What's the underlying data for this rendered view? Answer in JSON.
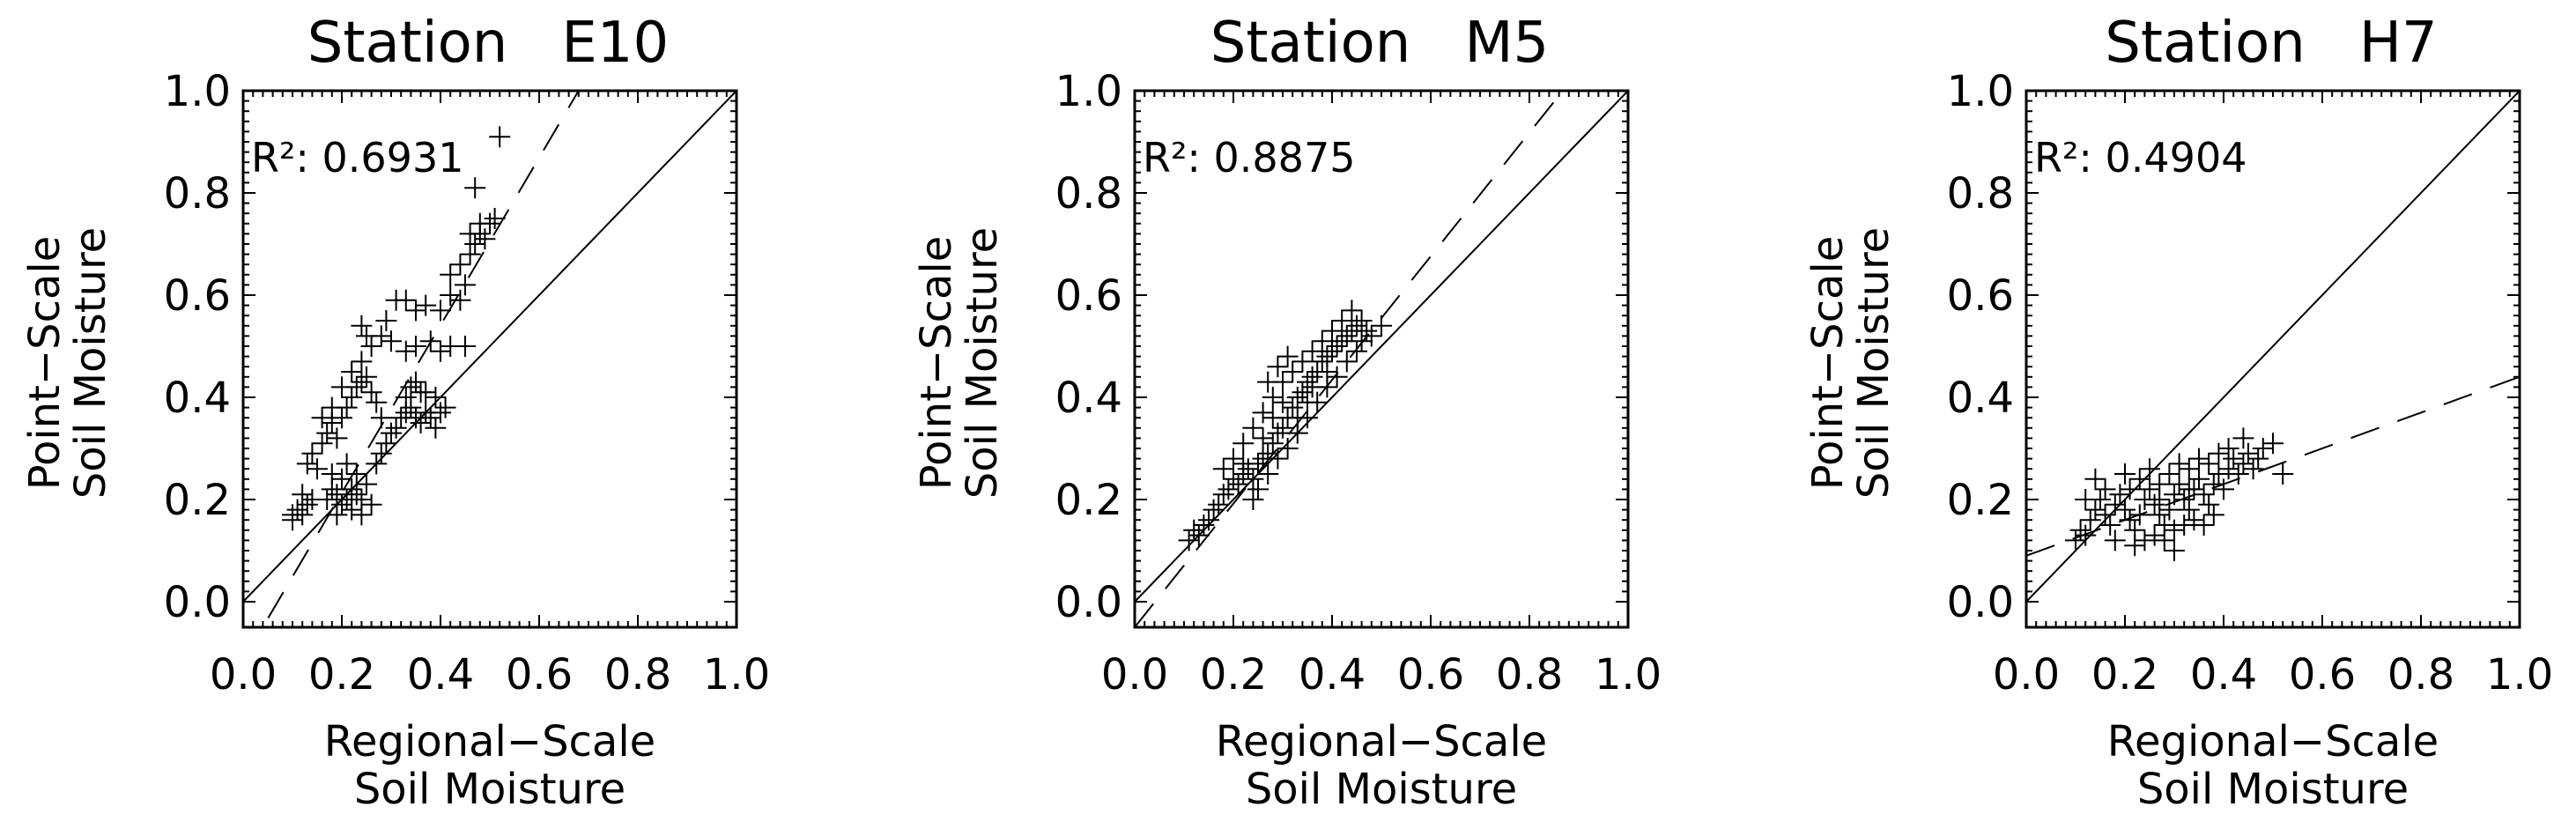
{
  "figure": {
    "panels": [
      {
        "title": "Station   E10",
        "r2_label": "R²: 0.6931",
        "xlabel_line1": "Regional−Scale",
        "xlabel_line2": "Soil Moisture",
        "ylabel_line1": "Point−Scale",
        "ylabel_line2": "Soil Moisture"
      },
      {
        "title": "Station   M5",
        "r2_label": "R²: 0.8875",
        "xlabel_line1": "Regional−Scale",
        "xlabel_line2": "Soil Moisture",
        "ylabel_line1": "Point−Scale",
        "ylabel_line2": "Soil Moisture"
      },
      {
        "title": "Station   H7",
        "r2_label": "R²: 0.4904",
        "xlabel_line1": "Regional−Scale",
        "xlabel_line2": "Soil Moisture",
        "ylabel_line1": "Point−Scale",
        "ylabel_line2": "Soil Moisture"
      }
    ]
  },
  "chart_data": [
    {
      "type": "scatter",
      "title": "Station   E10",
      "xlabel": "Regional−Scale Soil Moisture",
      "ylabel": "Point−Scale Soil Moisture",
      "xlim": [
        0.0,
        1.0
      ],
      "ylim": [
        -0.05,
        1.0
      ],
      "xticks": [
        "0.0",
        "0.2",
        "0.4",
        "0.6",
        "0.8",
        "1.0"
      ],
      "yticks": [
        "0.0",
        "0.2",
        "0.4",
        "0.6",
        "0.8",
        "1.0"
      ],
      "annotation": "R²: 0.6931",
      "one_to_one_line": true,
      "regression_line": {
        "slope": 1.64,
        "intercept": -0.115
      },
      "marker": "+",
      "color": "#000000",
      "points": [
        [
          0.1,
          0.17
        ],
        [
          0.11,
          0.18
        ],
        [
          0.12,
          0.17
        ],
        [
          0.13,
          0.19
        ],
        [
          0.12,
          0.21
        ],
        [
          0.14,
          0.2
        ],
        [
          0.1,
          0.16
        ],
        [
          0.17,
          0.2
        ],
        [
          0.18,
          0.22
        ],
        [
          0.19,
          0.21
        ],
        [
          0.2,
          0.19
        ],
        [
          0.21,
          0.2
        ],
        [
          0.22,
          0.22
        ],
        [
          0.23,
          0.21
        ],
        [
          0.24,
          0.2
        ],
        [
          0.25,
          0.23
        ],
        [
          0.2,
          0.24
        ],
        [
          0.22,
          0.18
        ],
        [
          0.19,
          0.17
        ],
        [
          0.24,
          0.17
        ],
        [
          0.26,
          0.19
        ],
        [
          0.18,
          0.25
        ],
        [
          0.21,
          0.27
        ],
        [
          0.23,
          0.25
        ],
        [
          0.27,
          0.27
        ],
        [
          0.28,
          0.29
        ],
        [
          0.29,
          0.31
        ],
        [
          0.3,
          0.33
        ],
        [
          0.31,
          0.34
        ],
        [
          0.32,
          0.36
        ],
        [
          0.33,
          0.37
        ],
        [
          0.34,
          0.38
        ],
        [
          0.35,
          0.36
        ],
        [
          0.36,
          0.35
        ],
        [
          0.37,
          0.37
        ],
        [
          0.38,
          0.36
        ],
        [
          0.39,
          0.34
        ],
        [
          0.4,
          0.37
        ],
        [
          0.41,
          0.38
        ],
        [
          0.36,
          0.41
        ],
        [
          0.35,
          0.43
        ],
        [
          0.33,
          0.4
        ],
        [
          0.13,
          0.27
        ],
        [
          0.14,
          0.29
        ],
        [
          0.15,
          0.26
        ],
        [
          0.16,
          0.31
        ],
        [
          0.17,
          0.33
        ],
        [
          0.18,
          0.35
        ],
        [
          0.19,
          0.32
        ],
        [
          0.2,
          0.36
        ],
        [
          0.21,
          0.38
        ],
        [
          0.22,
          0.4
        ],
        [
          0.23,
          0.42
        ],
        [
          0.24,
          0.43
        ],
        [
          0.25,
          0.44
        ],
        [
          0.26,
          0.41
        ],
        [
          0.27,
          0.39
        ],
        [
          0.28,
          0.36
        ],
        [
          0.18,
          0.38
        ],
        [
          0.22,
          0.45
        ],
        [
          0.24,
          0.47
        ],
        [
          0.26,
          0.5
        ],
        [
          0.28,
          0.52
        ],
        [
          0.3,
          0.51
        ],
        [
          0.33,
          0.49
        ],
        [
          0.35,
          0.5
        ],
        [
          0.38,
          0.51
        ],
        [
          0.4,
          0.49
        ],
        [
          0.42,
          0.5
        ],
        [
          0.45,
          0.5
        ],
        [
          0.24,
          0.54
        ],
        [
          0.25,
          0.52
        ],
        [
          0.29,
          0.55
        ],
        [
          0.31,
          0.59
        ],
        [
          0.33,
          0.59
        ],
        [
          0.35,
          0.57
        ],
        [
          0.37,
          0.58
        ],
        [
          0.4,
          0.57
        ],
        [
          0.42,
          0.6
        ],
        [
          0.44,
          0.59
        ],
        [
          0.45,
          0.62
        ],
        [
          0.42,
          0.64
        ],
        [
          0.44,
          0.66
        ],
        [
          0.46,
          0.68
        ],
        [
          0.47,
          0.7
        ],
        [
          0.48,
          0.72
        ],
        [
          0.49,
          0.71
        ],
        [
          0.5,
          0.74
        ],
        [
          0.51,
          0.75
        ],
        [
          0.48,
          0.74
        ],
        [
          0.46,
          0.72
        ],
        [
          0.47,
          0.81
        ],
        [
          0.52,
          0.91
        ],
        [
          0.16,
          0.36
        ],
        [
          0.2,
          0.42
        ],
        [
          0.34,
          0.42
        ],
        [
          0.37,
          0.41
        ],
        [
          0.39,
          0.4
        ]
      ]
    },
    {
      "type": "scatter",
      "title": "Station   M5",
      "xlabel": "Regional−Scale Soil Moisture",
      "ylabel": "Point−Scale Soil Moisture",
      "xlim": [
        0.0,
        1.0
      ],
      "ylim": [
        -0.05,
        1.0
      ],
      "xticks": [
        "0.0",
        "0.2",
        "0.4",
        "0.6",
        "0.8",
        "1.0"
      ],
      "yticks": [
        "0.0",
        "0.2",
        "0.4",
        "0.6",
        "0.8",
        "1.0"
      ],
      "annotation": "R²: 0.8875",
      "one_to_one_line": true,
      "regression_line": {
        "slope": 1.21,
        "intercept": -0.05
      },
      "marker": "+",
      "color": "#000000",
      "points": [
        [
          0.11,
          0.12
        ],
        [
          0.12,
          0.14
        ],
        [
          0.13,
          0.13
        ],
        [
          0.14,
          0.15
        ],
        [
          0.15,
          0.16
        ],
        [
          0.16,
          0.18
        ],
        [
          0.17,
          0.19
        ],
        [
          0.18,
          0.21
        ],
        [
          0.19,
          0.22
        ],
        [
          0.2,
          0.24
        ],
        [
          0.21,
          0.23
        ],
        [
          0.22,
          0.25
        ],
        [
          0.23,
          0.26
        ],
        [
          0.24,
          0.24
        ],
        [
          0.25,
          0.27
        ],
        [
          0.26,
          0.28
        ],
        [
          0.27,
          0.29
        ],
        [
          0.28,
          0.31
        ],
        [
          0.29,
          0.33
        ],
        [
          0.3,
          0.34
        ],
        [
          0.31,
          0.36
        ],
        [
          0.32,
          0.38
        ],
        [
          0.33,
          0.4
        ],
        [
          0.34,
          0.41
        ],
        [
          0.35,
          0.43
        ],
        [
          0.36,
          0.44
        ],
        [
          0.37,
          0.45
        ],
        [
          0.38,
          0.47
        ],
        [
          0.39,
          0.48
        ],
        [
          0.4,
          0.49
        ],
        [
          0.41,
          0.5
        ],
        [
          0.42,
          0.51
        ],
        [
          0.43,
          0.52
        ],
        [
          0.44,
          0.53
        ],
        [
          0.45,
          0.54
        ],
        [
          0.46,
          0.55
        ],
        [
          0.47,
          0.53
        ],
        [
          0.48,
          0.52
        ],
        [
          0.5,
          0.54
        ],
        [
          0.44,
          0.57
        ],
        [
          0.42,
          0.55
        ],
        [
          0.4,
          0.53
        ],
        [
          0.38,
          0.51
        ],
        [
          0.36,
          0.49
        ],
        [
          0.34,
          0.47
        ],
        [
          0.32,
          0.45
        ],
        [
          0.3,
          0.43
        ],
        [
          0.28,
          0.4
        ],
        [
          0.26,
          0.37
        ],
        [
          0.24,
          0.34
        ],
        [
          0.22,
          0.31
        ],
        [
          0.2,
          0.28
        ],
        [
          0.18,
          0.26
        ],
        [
          0.25,
          0.22
        ],
        [
          0.27,
          0.25
        ],
        [
          0.29,
          0.28
        ],
        [
          0.31,
          0.3
        ],
        [
          0.33,
          0.33
        ],
        [
          0.35,
          0.36
        ],
        [
          0.37,
          0.39
        ],
        [
          0.39,
          0.42
        ],
        [
          0.41,
          0.44
        ],
        [
          0.43,
          0.47
        ],
        [
          0.24,
          0.2
        ],
        [
          0.22,
          0.27
        ],
        [
          0.26,
          0.32
        ],
        [
          0.28,
          0.36
        ],
        [
          0.3,
          0.39
        ],
        [
          0.29,
          0.46
        ],
        [
          0.31,
          0.48
        ],
        [
          0.27,
          0.43
        ],
        [
          0.33,
          0.36
        ],
        [
          0.35,
          0.39
        ],
        [
          0.36,
          0.42
        ],
        [
          0.45,
          0.49
        ],
        [
          0.46,
          0.51
        ],
        [
          0.39,
          0.45
        ]
      ]
    },
    {
      "type": "scatter",
      "title": "Station   H7",
      "xlabel": "Regional−Scale Soil Moisture",
      "ylabel": "Point−Scale Soil Moisture",
      "xlim": [
        0.0,
        1.0
      ],
      "ylim": [
        -0.05,
        1.0
      ],
      "xticks": [
        "0.0",
        "0.2",
        "0.4",
        "0.6",
        "0.8",
        "1.0"
      ],
      "yticks": [
        "0.0",
        "0.2",
        "0.4",
        "0.6",
        "0.8",
        "1.0"
      ],
      "annotation": "R²: 0.4904",
      "one_to_one_line": true,
      "regression_line": {
        "slope": 0.35,
        "intercept": 0.09
      },
      "marker": "+",
      "color": "#000000",
      "points": [
        [
          0.1,
          0.12
        ],
        [
          0.11,
          0.14
        ],
        [
          0.12,
          0.13
        ],
        [
          0.13,
          0.16
        ],
        [
          0.14,
          0.18
        ],
        [
          0.15,
          0.2
        ],
        [
          0.16,
          0.17
        ],
        [
          0.17,
          0.15
        ],
        [
          0.18,
          0.19
        ],
        [
          0.19,
          0.21
        ],
        [
          0.2,
          0.18
        ],
        [
          0.21,
          0.16
        ],
        [
          0.22,
          0.14
        ],
        [
          0.23,
          0.17
        ],
        [
          0.24,
          0.2
        ],
        [
          0.25,
          0.22
        ],
        [
          0.26,
          0.19
        ],
        [
          0.27,
          0.17
        ],
        [
          0.28,
          0.15
        ],
        [
          0.29,
          0.18
        ],
        [
          0.3,
          0.21
        ],
        [
          0.31,
          0.23
        ],
        [
          0.32,
          0.2
        ],
        [
          0.33,
          0.18
        ],
        [
          0.34,
          0.22
        ],
        [
          0.35,
          0.24
        ],
        [
          0.36,
          0.21
        ],
        [
          0.37,
          0.19
        ],
        [
          0.38,
          0.23
        ],
        [
          0.39,
          0.25
        ],
        [
          0.4,
          0.22
        ],
        [
          0.41,
          0.26
        ],
        [
          0.42,
          0.28
        ],
        [
          0.43,
          0.25
        ],
        [
          0.44,
          0.27
        ],
        [
          0.45,
          0.29
        ],
        [
          0.46,
          0.26
        ],
        [
          0.47,
          0.28
        ],
        [
          0.48,
          0.3
        ],
        [
          0.5,
          0.31
        ],
        [
          0.52,
          0.25
        ],
        [
          0.44,
          0.32
        ],
        [
          0.21,
          0.22
        ],
        [
          0.23,
          0.24
        ],
        [
          0.25,
          0.26
        ],
        [
          0.27,
          0.23
        ],
        [
          0.29,
          0.25
        ],
        [
          0.31,
          0.27
        ],
        [
          0.33,
          0.26
        ],
        [
          0.35,
          0.28
        ],
        [
          0.37,
          0.27
        ],
        [
          0.39,
          0.29
        ],
        [
          0.41,
          0.3
        ],
        [
          0.22,
          0.11
        ],
        [
          0.24,
          0.12
        ],
        [
          0.26,
          0.13
        ],
        [
          0.28,
          0.12
        ],
        [
          0.3,
          0.14
        ],
        [
          0.32,
          0.15
        ],
        [
          0.34,
          0.16
        ],
        [
          0.36,
          0.15
        ],
        [
          0.38,
          0.17
        ],
        [
          0.18,
          0.12
        ],
        [
          0.2,
          0.25
        ],
        [
          0.16,
          0.22
        ],
        [
          0.14,
          0.24
        ],
        [
          0.12,
          0.2
        ],
        [
          0.3,
          0.1
        ],
        [
          0.27,
          0.2
        ],
        [
          0.33,
          0.22
        ]
      ]
    }
  ]
}
